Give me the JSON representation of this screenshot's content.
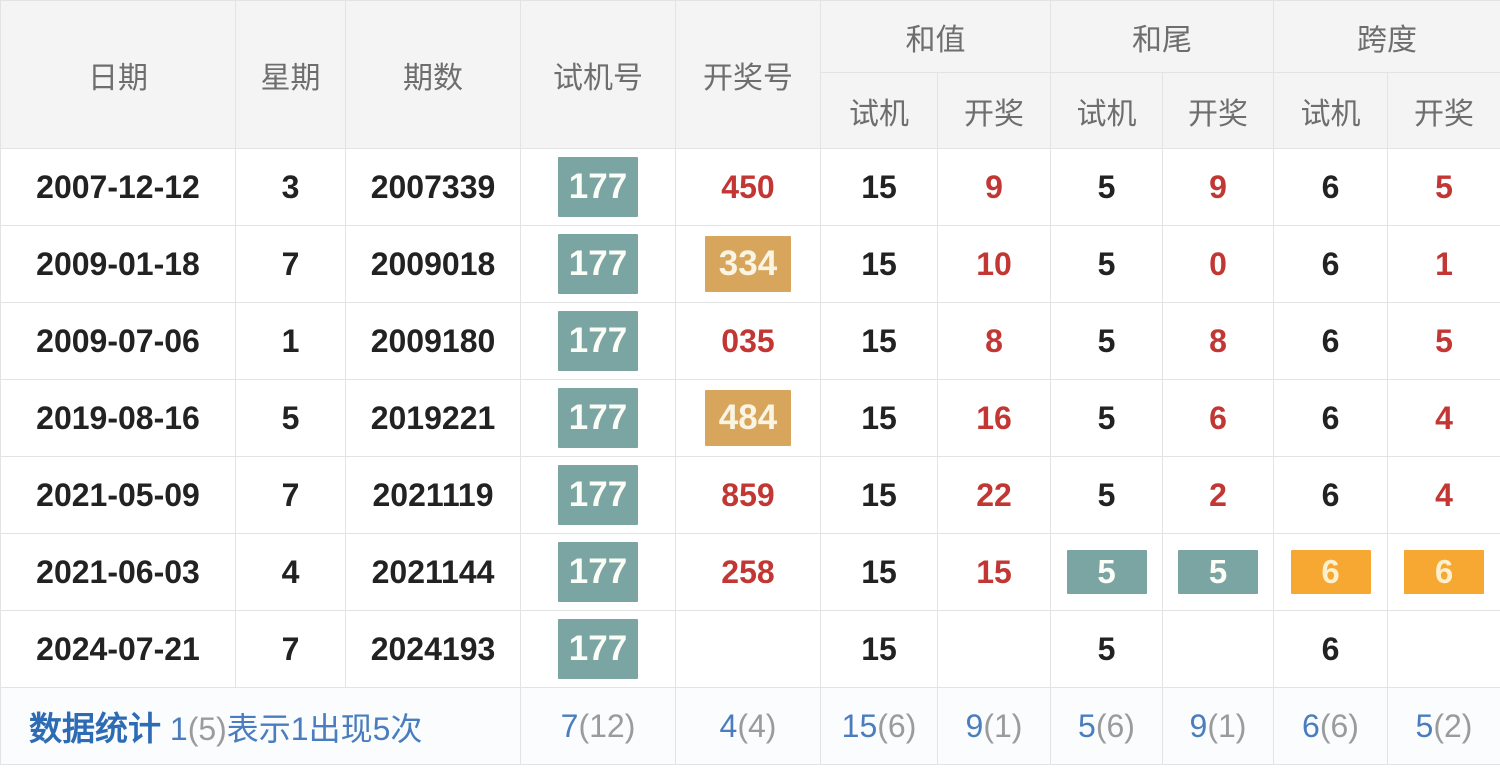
{
  "colors": {
    "header_bg": "#f4f4f4",
    "border": "#e3e3e3",
    "text_dark": "#222222",
    "text_gray": "#6e6e6e",
    "text_red": "#c23734",
    "badge_teal_bg": "#7aa5a2",
    "badge_gold_bg": "#d8a55c",
    "badge_orange_bg": "#f6a832",
    "stat_blue": "#4a7dbf",
    "stat_gray": "#9b9b9b",
    "label_blue": "#2d6cb4",
    "footer_bg": "#fafcfd"
  },
  "table": {
    "headers": {
      "date": "日期",
      "weekday": "星期",
      "period": "期数",
      "test_number": "试机号",
      "draw_number": "开奖号",
      "group_sum": "和值",
      "group_tail": "和尾",
      "group_span": "跨度",
      "sub_test": "试机",
      "sub_draw": "开奖"
    },
    "rows": [
      {
        "cells": [
          {
            "v": "2007-12-12"
          },
          {
            "v": "3"
          },
          {
            "v": "2007339"
          },
          {
            "v": "177",
            "c": "teal-badge"
          },
          {
            "v": "450",
            "c": "red"
          },
          {
            "v": "15"
          },
          {
            "v": "9",
            "c": "red"
          },
          {
            "v": "5"
          },
          {
            "v": "9",
            "c": "red"
          },
          {
            "v": "6"
          },
          {
            "v": "5",
            "c": "red"
          }
        ]
      },
      {
        "cells": [
          {
            "v": "2009-01-18"
          },
          {
            "v": "7"
          },
          {
            "v": "2009018"
          },
          {
            "v": "177",
            "c": "teal-badge"
          },
          {
            "v": "334",
            "c": "gold-badge"
          },
          {
            "v": "15"
          },
          {
            "v": "10",
            "c": "red"
          },
          {
            "v": "5"
          },
          {
            "v": "0",
            "c": "red"
          },
          {
            "v": "6"
          },
          {
            "v": "1",
            "c": "red"
          }
        ]
      },
      {
        "cells": [
          {
            "v": "2009-07-06"
          },
          {
            "v": "1"
          },
          {
            "v": "2009180"
          },
          {
            "v": "177",
            "c": "teal-badge"
          },
          {
            "v": "035",
            "c": "red"
          },
          {
            "v": "15"
          },
          {
            "v": "8",
            "c": "red"
          },
          {
            "v": "5"
          },
          {
            "v": "8",
            "c": "red"
          },
          {
            "v": "6"
          },
          {
            "v": "5",
            "c": "red"
          }
        ]
      },
      {
        "cells": [
          {
            "v": "2019-08-16"
          },
          {
            "v": "5"
          },
          {
            "v": "2019221"
          },
          {
            "v": "177",
            "c": "teal-badge"
          },
          {
            "v": "484",
            "c": "gold-badge"
          },
          {
            "v": "15"
          },
          {
            "v": "16",
            "c": "red"
          },
          {
            "v": "5"
          },
          {
            "v": "6",
            "c": "red"
          },
          {
            "v": "6"
          },
          {
            "v": "4",
            "c": "red"
          }
        ]
      },
      {
        "cells": [
          {
            "v": "2021-05-09"
          },
          {
            "v": "7"
          },
          {
            "v": "2021119"
          },
          {
            "v": "177",
            "c": "teal-badge"
          },
          {
            "v": "859",
            "c": "red"
          },
          {
            "v": "15"
          },
          {
            "v": "22",
            "c": "red"
          },
          {
            "v": "5"
          },
          {
            "v": "2",
            "c": "red"
          },
          {
            "v": "6"
          },
          {
            "v": "4",
            "c": "red"
          }
        ]
      },
      {
        "cells": [
          {
            "v": "2021-06-03"
          },
          {
            "v": "4"
          },
          {
            "v": "2021144"
          },
          {
            "v": "177",
            "c": "teal-badge"
          },
          {
            "v": "258",
            "c": "red"
          },
          {
            "v": "15"
          },
          {
            "v": "15",
            "c": "red"
          },
          {
            "v": "5",
            "c": "teal-rect"
          },
          {
            "v": "5",
            "c": "teal-rect"
          },
          {
            "v": "6",
            "c": "orange-rect"
          },
          {
            "v": "6",
            "c": "orange-rect"
          }
        ]
      },
      {
        "cells": [
          {
            "v": "2024-07-21"
          },
          {
            "v": "7"
          },
          {
            "v": "2024193"
          },
          {
            "v": "177",
            "c": "teal-badge"
          },
          {
            "v": ""
          },
          {
            "v": "15"
          },
          {
            "v": ""
          },
          {
            "v": "5"
          },
          {
            "v": ""
          },
          {
            "v": "6"
          },
          {
            "v": ""
          }
        ]
      }
    ],
    "footer": {
      "label": "数据统计",
      "note_parts": [
        {
          "t": "1",
          "c": "blue"
        },
        {
          "t": "(5)",
          "c": "gray"
        },
        {
          "t": "表示1出现5次",
          "c": "blue"
        }
      ],
      "stats": [
        {
          "num": "7",
          "paren": "(12)"
        },
        {
          "num": "4",
          "paren": "(4)"
        },
        {
          "num": "15",
          "paren": "(6)"
        },
        {
          "num": "9",
          "paren": "(1)"
        },
        {
          "num": "5",
          "paren": "(6)"
        },
        {
          "num": "9",
          "paren": "(1)"
        },
        {
          "num": "6",
          "paren": "(6)"
        },
        {
          "num": "5",
          "paren": "(2)"
        }
      ]
    }
  }
}
